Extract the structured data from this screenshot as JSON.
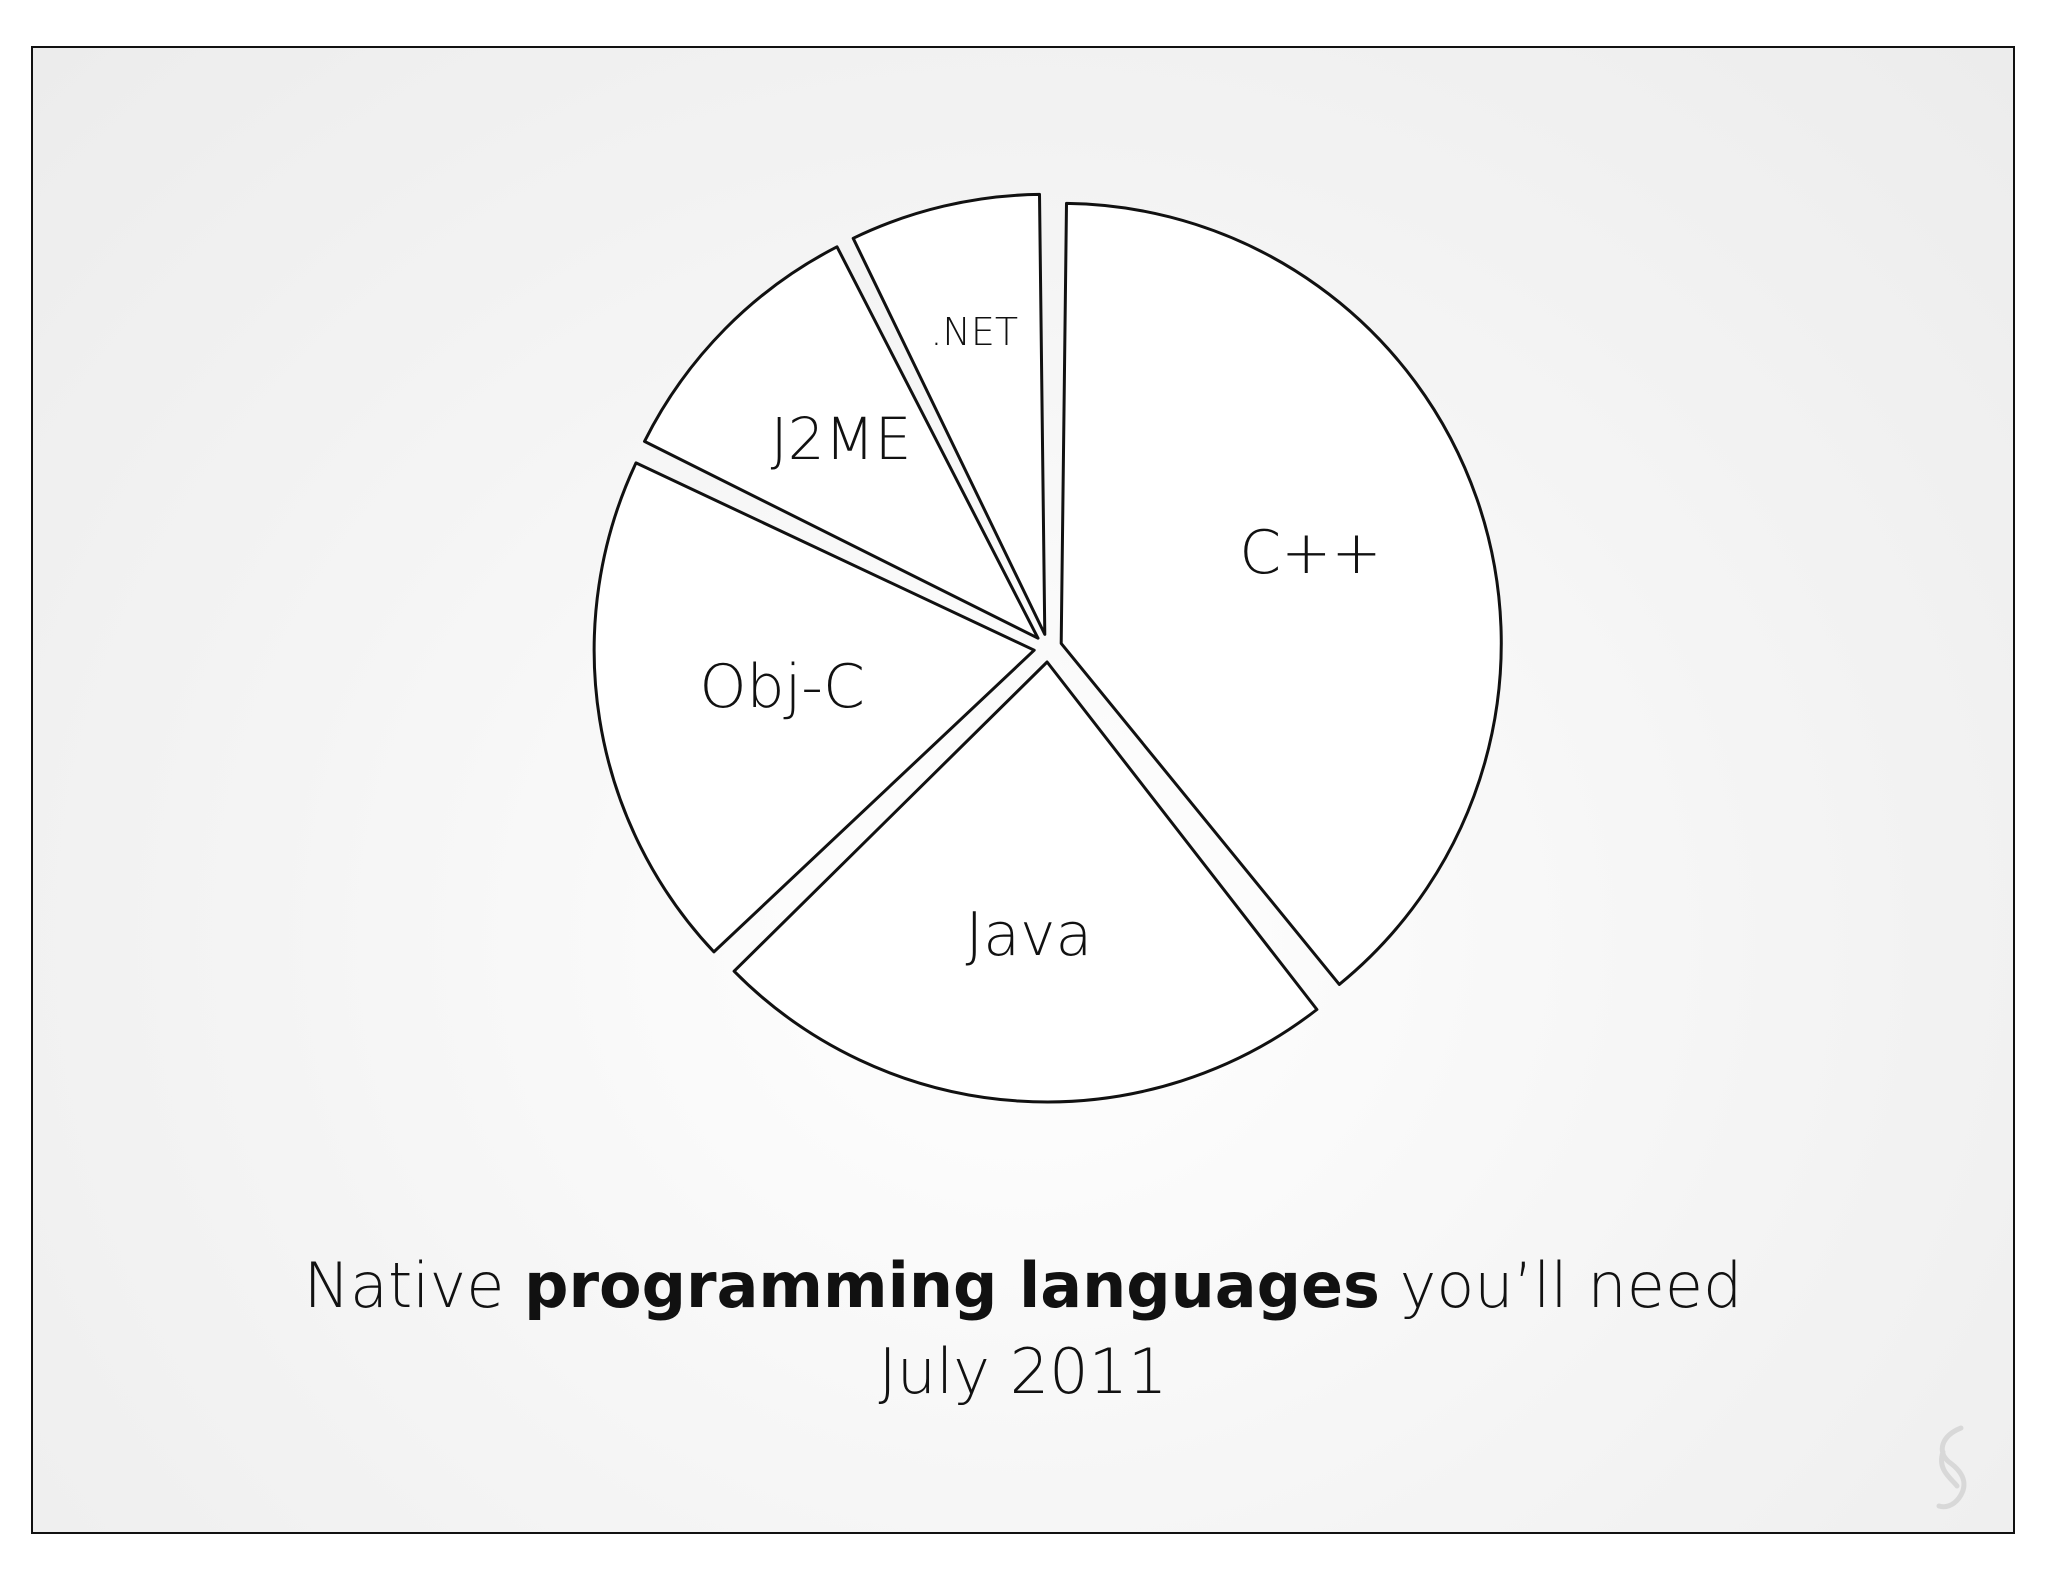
{
  "chart_data": {
    "type": "pie",
    "categories": [
      "C++",
      "Java",
      "Obj-C",
      "J2ME",
      ".NET"
    ],
    "values": [
      39.5,
      23.6,
      19.5,
      10.5,
      7.4
    ],
    "exploded": true,
    "legend": "none",
    "title_parts": {
      "pre": "Native ",
      "bold": "programming languages",
      "post": " you’ll need"
    },
    "subtitle": "July 2011"
  },
  "colors": {
    "slice_fill": "#ffffff",
    "slice_stroke": "#111111"
  },
  "watermark_icon": "stylized-s-logo-icon"
}
